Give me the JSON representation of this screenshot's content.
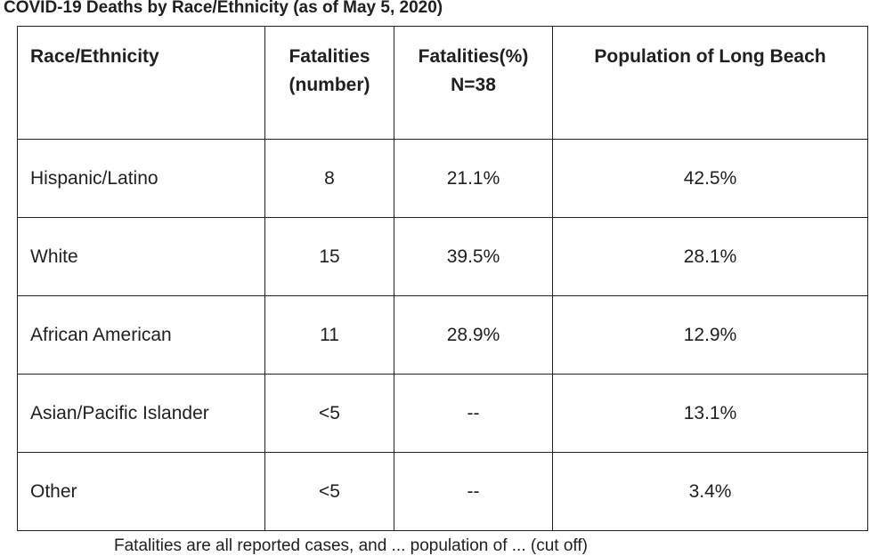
{
  "title": "COVID-19 Deaths by Race/Ethnicity (as of May 5, 2020)",
  "table": {
    "headers": [
      "Race/Ethnicity",
      "Fatalities\n(number)",
      "Fatalities(%)\nN=38",
      "Population of Long Beach"
    ],
    "rows": [
      [
        "Hispanic/Latino",
        "8",
        "21.1%",
        "42.5%"
      ],
      [
        "White",
        "15",
        "39.5%",
        "28.1%"
      ],
      [
        "African American",
        "11",
        "28.9%",
        "12.9%"
      ],
      [
        "Asian/Pacific Islander",
        "<5",
        "--",
        "13.1%"
      ],
      [
        "Other",
        "<5",
        "--",
        "3.4%"
      ]
    ]
  },
  "footnote": "Fatalities are all reported cases, and ... population of ... (cut off)"
}
